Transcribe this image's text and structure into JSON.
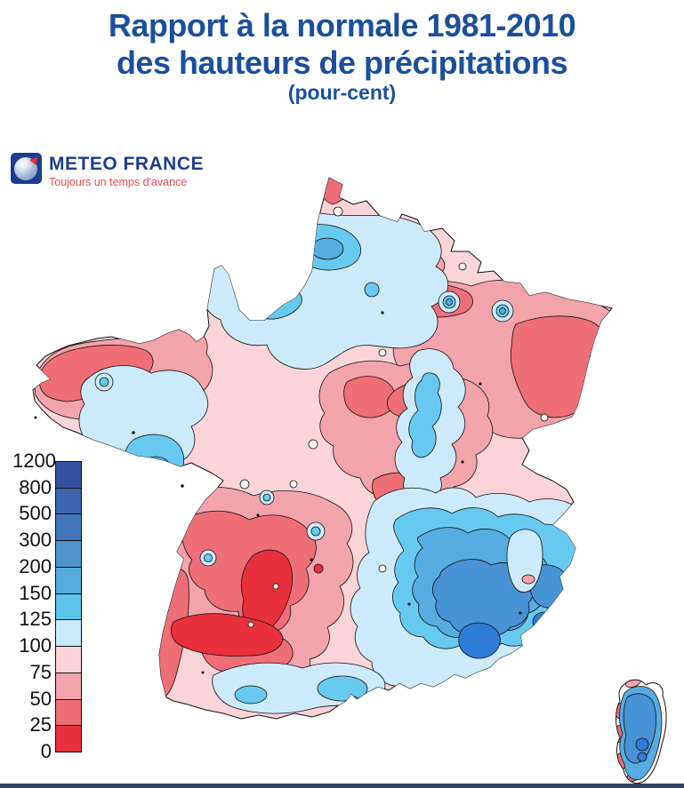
{
  "header": {
    "title_line1": "Rapport à la normale 1981-2010",
    "title_line2": "des hauteurs de précipitations",
    "subtitle": "(pour-cent)",
    "title_color": "#1b4f9e"
  },
  "logo": {
    "name": "METEO FRANCE",
    "tagline": "Toujours un temps d'avance",
    "brand_color": "#1d3e8f",
    "tagline_color": "#e84b50"
  },
  "legend": {
    "unit": "pour-cent",
    "labels": [
      "1200",
      "800",
      "500",
      "300",
      "200",
      "150",
      "125",
      "100",
      "75",
      "50",
      "25",
      "0"
    ],
    "band_colors": [
      "#35509e",
      "#3a64ae",
      "#4377bc",
      "#5094ce",
      "#55acde",
      "#5fc4ec",
      "#c9e9f9",
      "#fad2d8",
      "#f2a3ab",
      "#ee6e77",
      "#e8303c"
    ]
  },
  "map": {
    "region": "France",
    "palette": {
      "base": "#fbd4da",
      "pink2": "#f2a3ab",
      "red3": "#ee6e77",
      "red4": "#e8303c",
      "blue1": "#cdeafa",
      "blue2": "#68c9f0",
      "blue3": "#56ace0",
      "blue4": "#4892d6",
      "blue5": "#2f7cd6",
      "white_spot": "#ffffff",
      "outline": "#111111"
    },
    "readings": [
      {
        "area": "sud-ouest (Aquitaine / Midi-Pyrénées)",
        "ratio_percent": "0-50"
      },
      {
        "area": "sud-est (Alpes / Provence)",
        "ratio_percent": "150-500"
      },
      {
        "area": "nord-est (Alsace / Lorraine)",
        "ratio_percent": "25-75"
      },
      {
        "area": "pointe de Bretagne",
        "ratio_percent": "50-75"
      },
      {
        "area": "nord / centre-nord",
        "ratio_percent": "100-150"
      },
      {
        "area": "Corse",
        "ratio_percent": "150-300"
      }
    ]
  },
  "footer": {
    "bar_color": "#31415f"
  }
}
